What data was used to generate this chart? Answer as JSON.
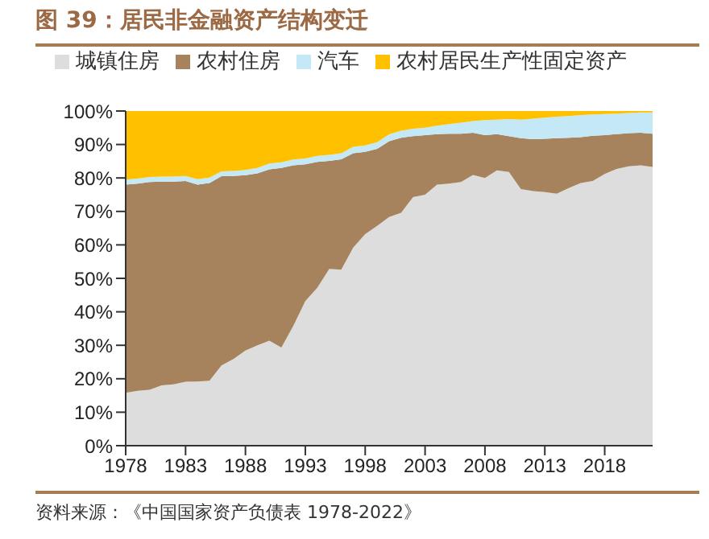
{
  "chart_data": {
    "type": "area",
    "title": "图 39：居民非金融资产结构变迁",
    "annotations": [
      "资料来源：《中国国家资产负债表 1978-2022》"
    ],
    "stacked": true,
    "legend": "top",
    "grid": false,
    "x": [
      1978,
      1979,
      1980,
      1981,
      1982,
      1983,
      1984,
      1985,
      1986,
      1987,
      1988,
      1989,
      1990,
      1991,
      1992,
      1993,
      1994,
      1995,
      1996,
      1997,
      1998,
      1999,
      2000,
      2001,
      2002,
      2003,
      2004,
      2005,
      2006,
      2007,
      2008,
      2009,
      2010,
      2011,
      2012,
      2013,
      2014,
      2015,
      2016,
      2017,
      2018,
      2019,
      2020,
      2021,
      2022
    ],
    "xlim": [
      1978,
      2022
    ],
    "xticks": [
      1978,
      1983,
      1988,
      1993,
      1998,
      2003,
      2008,
      2013,
      2018
    ],
    "ylim": [
      0,
      100
    ],
    "yticks": [
      {
        "value": 0,
        "label": "0%"
      },
      {
        "value": 10,
        "label": "10%"
      },
      {
        "value": 20,
        "label": "20%"
      },
      {
        "value": 30,
        "label": "30%"
      },
      {
        "value": 40,
        "label": "40%"
      },
      {
        "value": 50,
        "label": "50%"
      },
      {
        "value": 60,
        "label": "60%"
      },
      {
        "value": 70,
        "label": "70%"
      },
      {
        "value": 80,
        "label": "80%"
      },
      {
        "value": 90,
        "label": "90%"
      },
      {
        "value": 100,
        "label": "100%"
      }
    ],
    "series": [
      {
        "name": "城镇住房",
        "color": "#dddddd",
        "values": [
          15.8,
          16.4,
          16.7,
          18,
          18.3,
          19.1,
          19.2,
          19.4,
          24,
          25.9,
          28.4,
          30,
          31.4,
          29.3,
          35.8,
          43.2,
          47.2,
          52.8,
          52.6,
          59.2,
          63.2,
          65.7,
          68.3,
          69.6,
          74.3,
          75,
          78,
          78.3,
          78.8,
          80.9,
          80,
          82.3,
          81.8,
          76.7,
          76.1,
          75.8,
          75.3,
          77,
          78.5,
          79.1,
          81.2,
          82.7,
          83.5,
          83.8,
          83.3
        ]
      },
      {
        "name": "农村住房",
        "color": "#a6835c",
        "values": [
          62.2,
          61.9,
          62.1,
          60.9,
          60.6,
          60,
          58.8,
          59.1,
          56.5,
          54.7,
          52.4,
          51.4,
          51.2,
          53.7,
          48,
          40.9,
          37.6,
          32.3,
          33,
          28.2,
          24.6,
          23,
          22.7,
          22.4,
          18.2,
          17.8,
          15.1,
          14.9,
          14.4,
          12.6,
          12.8,
          10.8,
          10.7,
          15.2,
          15.5,
          15.9,
          16.6,
          15,
          13.7,
          13.5,
          11.6,
          10.4,
          9.9,
          9.7,
          9.9
        ]
      },
      {
        "name": "汽车",
        "color": "#c5e8f7",
        "values": [
          1.5,
          1.5,
          1.5,
          1.5,
          1.5,
          1.5,
          1.6,
          1.6,
          1.5,
          1.5,
          1.6,
          1.6,
          1.7,
          1.7,
          1.7,
          1.7,
          1.8,
          1.8,
          1.8,
          1.9,
          1.9,
          2,
          2,
          2.1,
          2.2,
          2.2,
          2.5,
          2.9,
          3.3,
          3.5,
          4.5,
          4.3,
          5.1,
          5.5,
          6.1,
          6.3,
          6.4,
          6.5,
          6.6,
          6.4,
          6.3,
          6.1,
          6,
          6.1,
          6.4
        ]
      },
      {
        "name": "农村居民生产性固定资产",
        "color": "#ffc000",
        "values": [
          20.5,
          20.2,
          19.7,
          19.6,
          19.6,
          19.4,
          20.4,
          19.9,
          18,
          17.9,
          17.6,
          17,
          15.7,
          15.3,
          14.5,
          14.2,
          13.4,
          13.1,
          12.6,
          10.7,
          10.3,
          9.3,
          7,
          5.9,
          5.3,
          5,
          4.4,
          3.9,
          3.5,
          3,
          2.7,
          2.6,
          2.4,
          2.6,
          2.3,
          2,
          1.7,
          1.5,
          1.2,
          1,
          0.9,
          0.8,
          0.6,
          0.4,
          0.4
        ]
      }
    ]
  }
}
